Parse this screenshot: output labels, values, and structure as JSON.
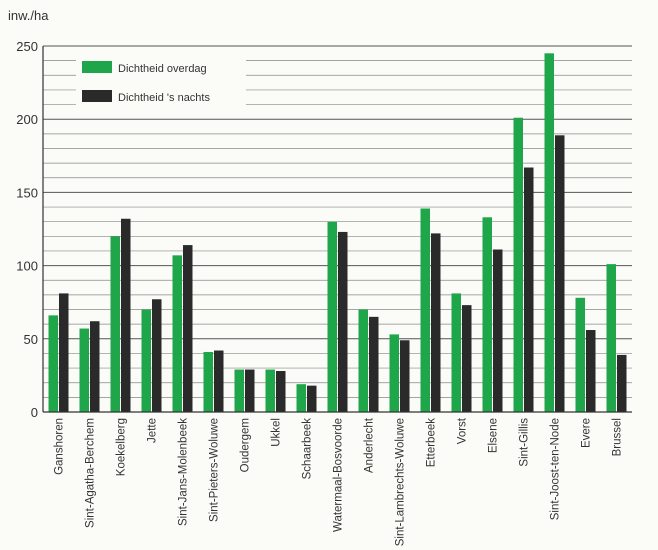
{
  "chart_data": {
    "type": "bar",
    "ylabel": "inw./ha",
    "ylim": [
      0,
      250
    ],
    "yticks": [
      0,
      50,
      100,
      150,
      200,
      250
    ],
    "grid": true,
    "legend_position": "top-left",
    "categories": [
      "Ganshoren",
      "Sint-Agatha-Berchem",
      "Koekelberg",
      "Jette",
      "Sint-Jans-Molenbeek",
      "Sint-Pieters-Woluwe",
      "Oudergem",
      "Ukkel",
      "Schaarbeek",
      "Watermaal-Bosvoorde",
      "Anderlecht",
      "Sint-Lambrechts-Woluwe",
      "Etterbeek",
      "Vorst",
      "Elsene",
      "Sint-Gillis",
      "Sint-Joost-ten-Node",
      "Evere",
      "Brussel"
    ],
    "series": [
      {
        "name": "Dichtheid overdag",
        "color": "#1fa54a",
        "values": [
          66,
          57,
          120,
          70,
          107,
          41,
          29,
          29,
          19,
          130,
          70,
          53,
          139,
          81,
          133,
          201,
          245,
          78,
          101
        ]
      },
      {
        "name": "Dichtheid 's nachts",
        "color": "#2a2a2a",
        "values": [
          81,
          62,
          132,
          77,
          114,
          42,
          29,
          28,
          18,
          123,
          65,
          49,
          122,
          73,
          111,
          167,
          189,
          56,
          39
        ]
      }
    ]
  }
}
